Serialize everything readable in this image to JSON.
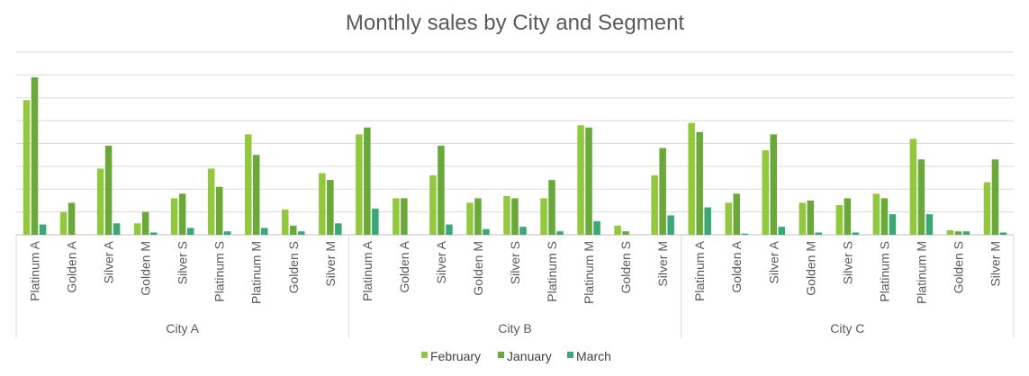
{
  "chart_data": {
    "type": "bar",
    "title": "Monthly sales by City and Segment",
    "xlabel": "",
    "ylabel": "",
    "grid": true,
    "legend_placement": "bottom",
    "ylim": [
      0,
      8
    ],
    "groups": [
      {
        "label": "City A",
        "categories": [
          "Platinum A",
          "Golden A",
          "Silver A",
          "Golden M",
          "Silver S",
          "Platinum S",
          "Platinum M",
          "Golden S",
          "Silver M"
        ]
      },
      {
        "label": "City B",
        "categories": [
          "Platinum A",
          "Golden A",
          "Silver A",
          "Golden M",
          "Silver S",
          "Platinum S",
          "Platinum M",
          "Golden S",
          "Silver M"
        ]
      },
      {
        "label": "City C",
        "categories": [
          "Platinum A",
          "Golden A",
          "Silver A",
          "Golden M",
          "Silver S",
          "Platinum S",
          "Platinum M",
          "Golden S",
          "Silver M"
        ]
      }
    ],
    "series": [
      {
        "name": "February",
        "color": "#92c83e",
        "values": [
          5.9,
          1.0,
          2.9,
          0.5,
          1.6,
          2.9,
          4.4,
          1.1,
          2.7,
          4.4,
          1.6,
          2.6,
          1.4,
          1.7,
          1.6,
          4.8,
          0.4,
          2.6,
          4.9,
          1.4,
          3.7,
          1.4,
          1.3,
          1.8,
          4.2,
          0.2,
          2.3
        ]
      },
      {
        "name": "January",
        "color": "#6aa83a",
        "values": [
          6.9,
          1.4,
          3.9,
          1.0,
          1.8,
          2.1,
          3.5,
          0.4,
          2.4,
          4.7,
          1.6,
          3.9,
          1.6,
          1.6,
          2.4,
          4.7,
          0.15,
          3.8,
          4.5,
          1.8,
          4.4,
          1.5,
          1.6,
          1.6,
          3.3,
          0.15,
          3.3
        ]
      },
      {
        "name": "March",
        "color": "#3aa876",
        "values": [
          0.45,
          0.0,
          0.5,
          0.1,
          0.3,
          0.15,
          0.3,
          0.15,
          0.5,
          1.15,
          0.0,
          0.45,
          0.25,
          0.35,
          0.15,
          0.6,
          0.0,
          0.85,
          1.2,
          0.05,
          0.35,
          0.1,
          0.1,
          0.9,
          0.9,
          0.15,
          0.1
        ]
      }
    ]
  }
}
